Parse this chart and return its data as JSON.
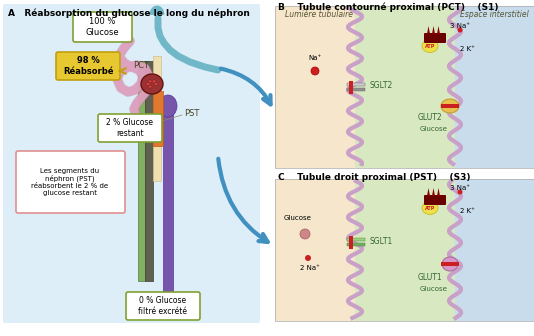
{
  "title_A": "A   Réabsorption du glucose le long du néphron",
  "title_B": "B    Tubule contourné proximal (PCT)    (S1)",
  "title_C": "C    Tubule droit proximal (PST)    (S3)",
  "label_100": "100 %\nGlucose",
  "label_PCT": "PCT",
  "label_98": "98 %\nRéabsorbé",
  "label_2": "2 % Glucose\nrestant",
  "label_PST": "PST",
  "label_PST_desc": "Les segments du\nnéphron (PST)\nréabsorbent le 2 % de\nglucose restant",
  "label_0": "0 % Glucose\nfiltré excrété",
  "label_lum": "Lumière tubulaire",
  "label_esp": "Espace interstitiel",
  "label_SGLT2": "SGLT2",
  "label_GLUT2": "GLUT2",
  "label_Glucose_B": "Glucose",
  "label_Na_B": "Na⁺",
  "label_3Na_B": "3 Na⁺",
  "label_2K_B": "2 K⁺",
  "label_SGLT1": "SGLT1",
  "label_GLUT1": "GLUT1",
  "label_Glucose_C": "Glucose",
  "label_2Na_C": "2 Na⁺",
  "label_3Na_C": "3 Na⁺",
  "label_2K_C": "2 K⁺",
  "tube_wall_color": "#c8a0c8",
  "blue_arrow_color": "#4090c0"
}
